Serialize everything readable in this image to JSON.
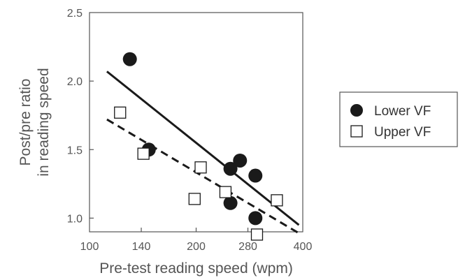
{
  "chart_data": {
    "type": "scatter",
    "xlabel": "Pre-test reading speed (wpm)",
    "ylabel": [
      "Post/pre ratio",
      "in reading speed"
    ],
    "xlim": [
      100,
      400
    ],
    "ylim": [
      0.9,
      2.5
    ],
    "x_scale": "log",
    "xticks": [
      100,
      140,
      200,
      280,
      400
    ],
    "yticks": [
      1.0,
      1.5,
      2.0,
      2.5
    ],
    "xtick_labels": [
      "100",
      "140",
      "200",
      "280",
      "400"
    ],
    "ytick_labels": [
      "1.0",
      "1.5",
      "2.0",
      "2.5"
    ],
    "grid": false,
    "legend_position": "right",
    "series": [
      {
        "name": "Lower VF",
        "marker": "filled-circle",
        "color": "#1a1a1a",
        "points": [
          {
            "x": 130,
            "y": 2.16
          },
          {
            "x": 147,
            "y": 1.5
          },
          {
            "x": 250,
            "y": 1.36
          },
          {
            "x": 250,
            "y": 1.11
          },
          {
            "x": 266,
            "y": 1.42
          },
          {
            "x": 294,
            "y": 1.31
          },
          {
            "x": 294,
            "y": 1.0
          }
        ],
        "fit": {
          "line_style": "solid",
          "x": [
            112,
            390
          ],
          "y": [
            2.07,
            0.95
          ]
        }
      },
      {
        "name": "Upper VF",
        "marker": "open-square",
        "color": "#1a1a1a",
        "points": [
          {
            "x": 122,
            "y": 1.77
          },
          {
            "x": 142,
            "y": 1.47
          },
          {
            "x": 206,
            "y": 1.37
          },
          {
            "x": 198,
            "y": 1.14
          },
          {
            "x": 242,
            "y": 1.19
          },
          {
            "x": 297,
            "y": 0.88
          },
          {
            "x": 338,
            "y": 1.13
          }
        ],
        "fit": {
          "line_style": "dashed",
          "x": [
            112,
            390
          ],
          "y": [
            1.72,
            0.89
          ]
        }
      }
    ]
  }
}
